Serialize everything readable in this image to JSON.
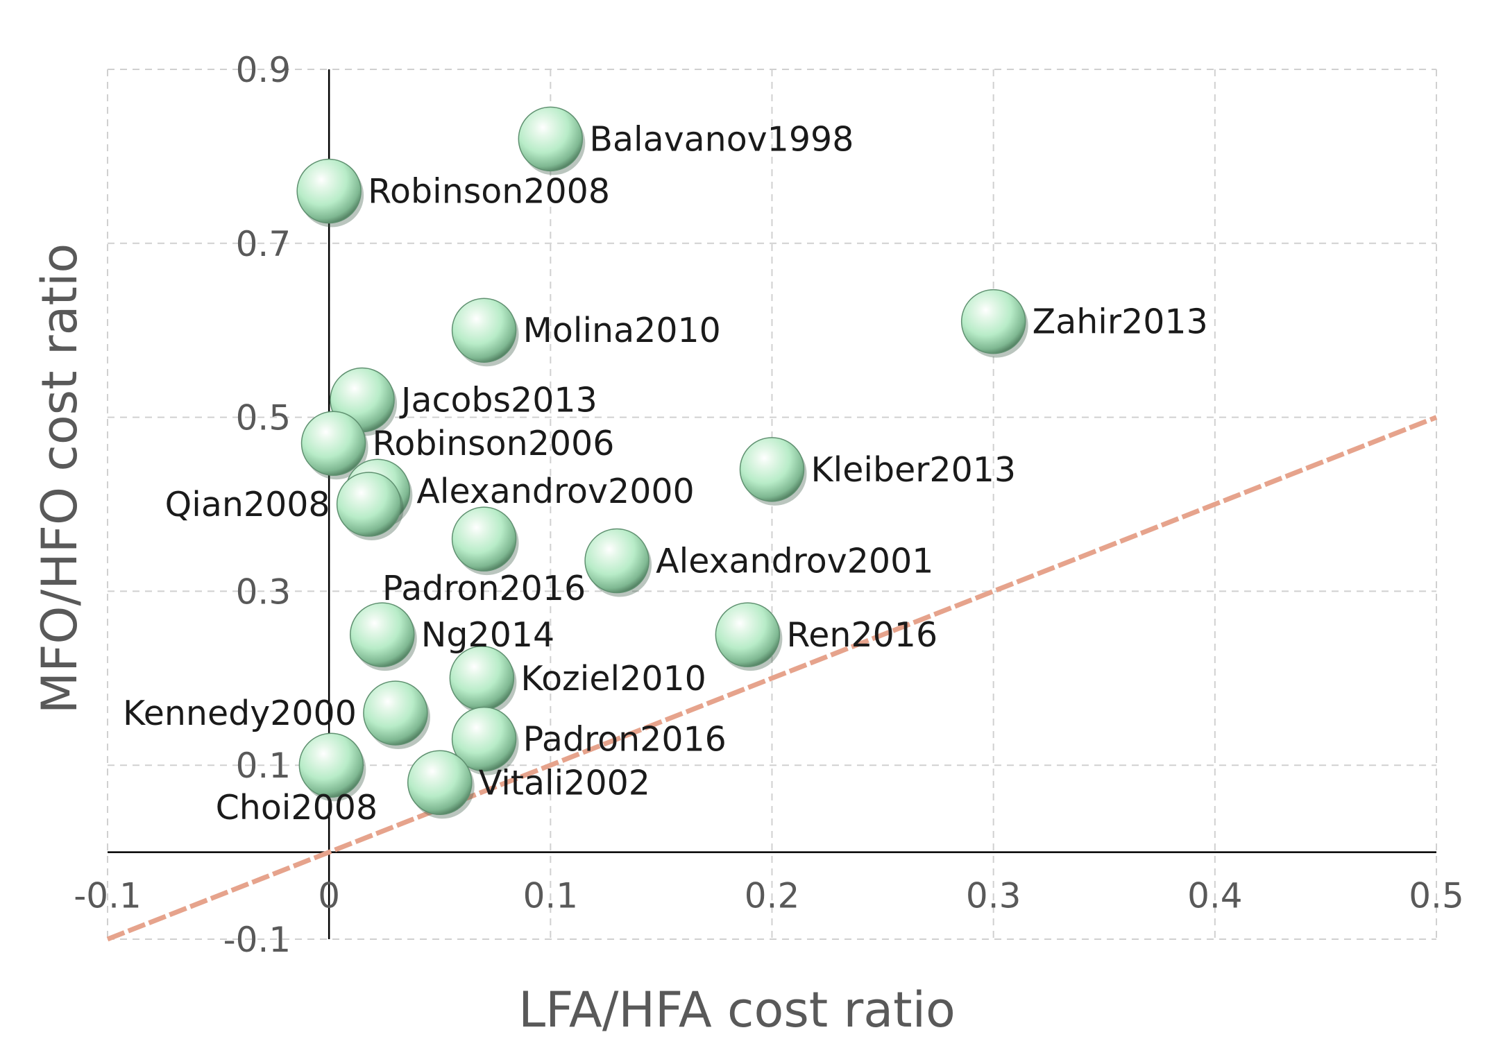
{
  "chart_data": {
    "type": "scatter",
    "title": "",
    "xlabel": "LFA/HFA cost ratio",
    "ylabel": "MFO/HFO cost  ratio",
    "xlim": [
      -0.1,
      0.5
    ],
    "ylim": [
      -0.1,
      0.9
    ],
    "x_ticks": [
      -0.1,
      0,
      0.1,
      0.2,
      0.3,
      0.4,
      0.5
    ],
    "x_tick_labels": [
      "-0.1",
      "0",
      "0.1",
      "0.2",
      "0.3",
      "0.4",
      "0.5"
    ],
    "y_ticks": [
      -0.1,
      0.1,
      0.3,
      0.5,
      0.7,
      0.9
    ],
    "y_tick_labels": [
      "-0.1",
      "0.1",
      "0.3",
      "0.5",
      "0.7",
      "0.9"
    ],
    "grid": true,
    "reference_line": {
      "description": "y = x",
      "from": [
        -0.1,
        -0.1
      ],
      "to": [
        0.5,
        0.5
      ],
      "color": "#e6a38c"
    },
    "marker_color": "#b8ecc8",
    "points": [
      {
        "label": "Balavanov1998",
        "x": 0.1,
        "y": 0.82,
        "label_pos": "right"
      },
      {
        "label": "Robinson2008",
        "x": 0.0,
        "y": 0.76,
        "label_pos": "right"
      },
      {
        "label": "Zahir2013",
        "x": 0.3,
        "y": 0.61,
        "label_pos": "right"
      },
      {
        "label": "Molina2010",
        "x": 0.07,
        "y": 0.6,
        "label_pos": "right"
      },
      {
        "label": "Jacobs2013",
        "x": 0.015,
        "y": 0.52,
        "label_pos": "right"
      },
      {
        "label": "Robinson2006",
        "x": 0.002,
        "y": 0.47,
        "label_pos": "right"
      },
      {
        "label": "Kleiber2013",
        "x": 0.2,
        "y": 0.44,
        "label_pos": "right"
      },
      {
        "label": "Alexandrov2000",
        "x": 0.022,
        "y": 0.415,
        "label_pos": "right"
      },
      {
        "label": "Qian2008",
        "x": 0.018,
        "y": 0.4,
        "label_pos": "left"
      },
      {
        "label": "Padron2016",
        "x": 0.07,
        "y": 0.36,
        "label_pos": "below"
      },
      {
        "label": "Alexandrov2001",
        "x": 0.13,
        "y": 0.335,
        "label_pos": "right"
      },
      {
        "label": "Ng2014",
        "x": 0.024,
        "y": 0.25,
        "label_pos": "right"
      },
      {
        "label": "Ren2016",
        "x": 0.189,
        "y": 0.25,
        "label_pos": "right"
      },
      {
        "label": "Koziel2010",
        "x": 0.069,
        "y": 0.2,
        "label_pos": "right"
      },
      {
        "label": "Kennedy2000",
        "x": 0.03,
        "y": 0.16,
        "label_pos": "left"
      },
      {
        "label": "Padron2016",
        "x": 0.07,
        "y": 0.13,
        "label_pos": "right"
      },
      {
        "label": "Choi2008",
        "x": 0.001,
        "y": 0.1,
        "label_pos": "below-left"
      },
      {
        "label": "Vitali2002",
        "x": 0.05,
        "y": 0.08,
        "label_pos": "right"
      }
    ]
  }
}
